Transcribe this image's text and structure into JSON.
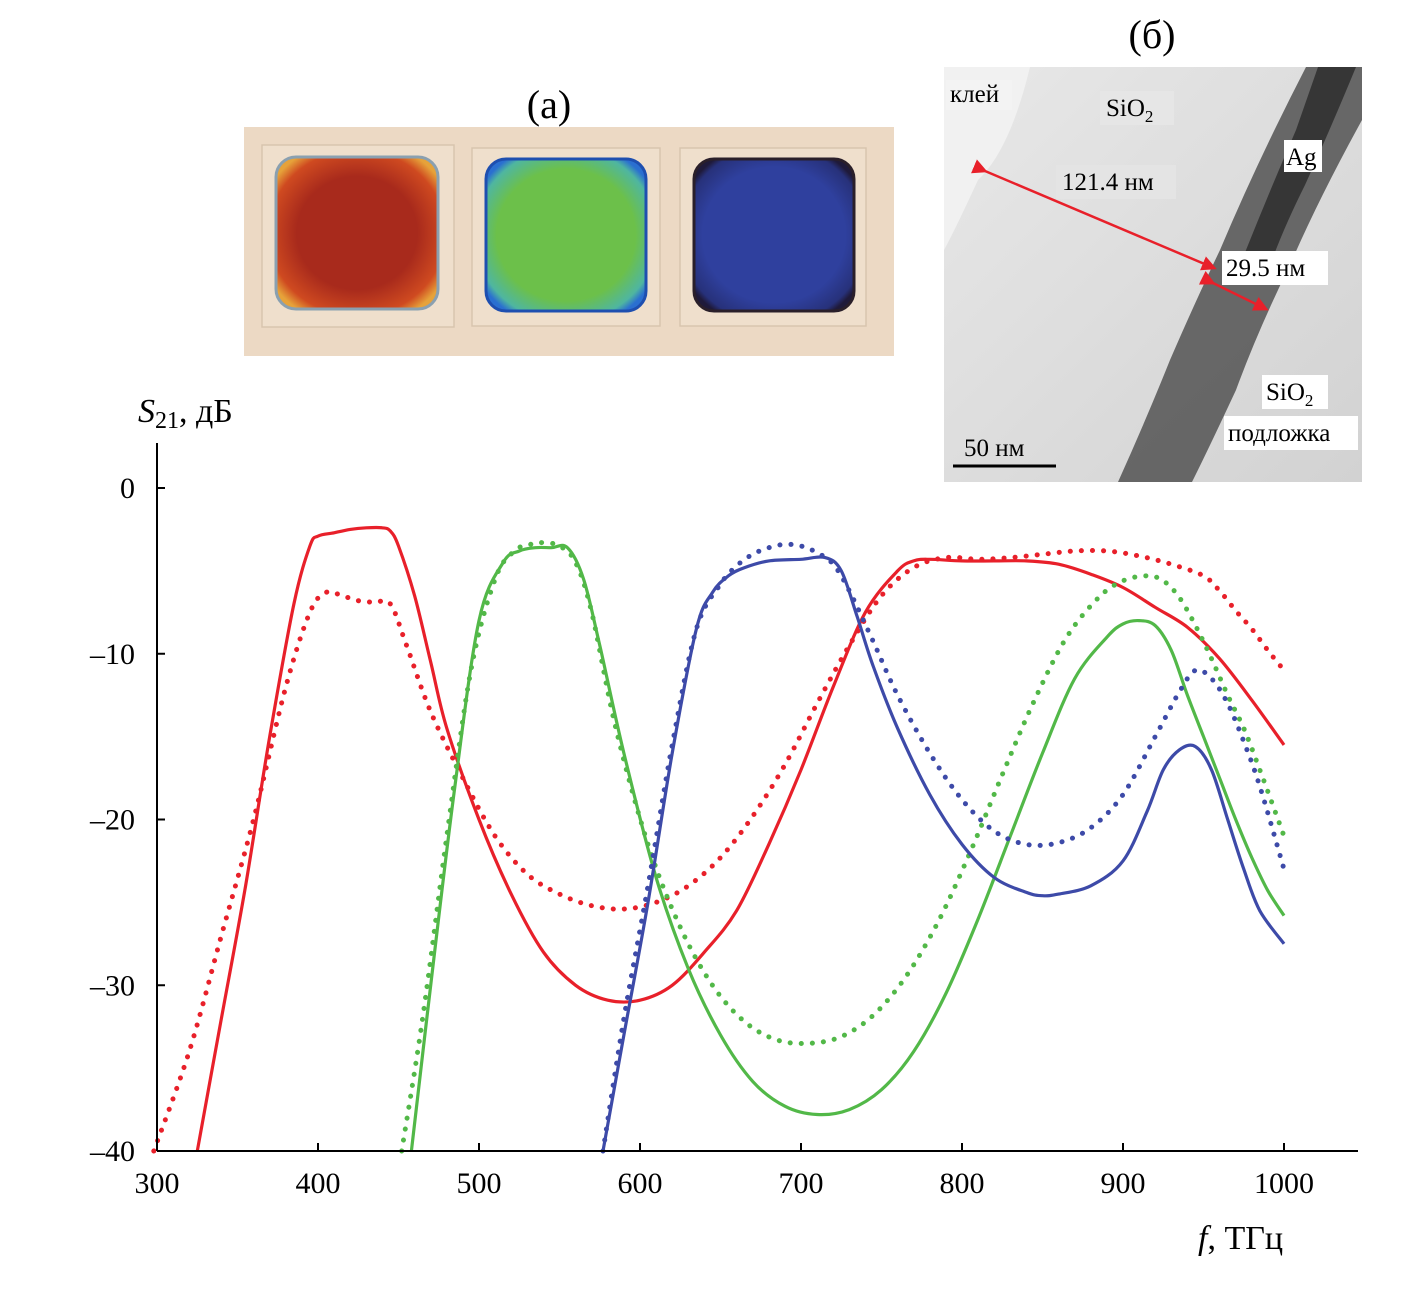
{
  "panel_a": {
    "label": "(а)",
    "samples": [
      {
        "name": "red-filter",
        "color": "#b02a1e",
        "edge_color": "#d96a20"
      },
      {
        "name": "green-filter",
        "color": "#6cc04a",
        "edge_color": "#2f79c9"
      },
      {
        "name": "blue-filter",
        "color": "#2f3f9c",
        "edge_color": "#1e2d7a"
      }
    ]
  },
  "panel_b": {
    "label": "(б)",
    "labels": {
      "glue": "клей",
      "sio2_top": "SiO",
      "sio2_top_sub": "2",
      "ag": "Ag",
      "dist1": "121.4 нм",
      "dist2": "29.5 нм",
      "sio2_bottom": "SiO",
      "sio2_bottom_sub": "2",
      "substrate": "подложка",
      "scale": "50 нм"
    },
    "arrow_color": "#e8202a"
  },
  "chart_data": {
    "type": "line",
    "ylabel_main": "S",
    "ylabel_sub": "21",
    "ylabel_unit": ", дБ",
    "xlabel_main": "f",
    "xlabel_unit": ", ТГц",
    "xlim": [
      300,
      1050
    ],
    "ylim": [
      -40,
      3
    ],
    "xticks": [
      300,
      400,
      500,
      600,
      700,
      800,
      900,
      1000
    ],
    "yticks": [
      0,
      -10,
      -20,
      -30,
      -40
    ],
    "ytick_labels": [
      "0",
      "–10",
      "–20",
      "–30",
      "–40"
    ],
    "series": [
      {
        "name": "red-solid",
        "color": "#e8202a",
        "style": "solid",
        "x": [
          325,
          340,
          355,
          370,
          385,
          395,
          400,
          410,
          420,
          430,
          440,
          445,
          450,
          460,
          470,
          480,
          500,
          520,
          540,
          560,
          580,
          600,
          620,
          640,
          660,
          680,
          700,
          720,
          740,
          760,
          770,
          780,
          800,
          820,
          840,
          860,
          880,
          900,
          920,
          940,
          960,
          980,
          1000
        ],
        "y": [
          -40,
          -32,
          -24,
          -15,
          -7,
          -3.5,
          -2.9,
          -2.7,
          -2.5,
          -2.4,
          -2.4,
          -2.6,
          -3.5,
          -6.5,
          -10.5,
          -14.5,
          -20,
          -24.5,
          -28,
          -30,
          -30.9,
          -30.9,
          -30,
          -28,
          -25.5,
          -21.5,
          -17,
          -12,
          -7.5,
          -5,
          -4.4,
          -4.3,
          -4.4,
          -4.4,
          -4.4,
          -4.6,
          -5.2,
          -6,
          -7.2,
          -8.4,
          -10.3,
          -12.8,
          -15.5
        ]
      },
      {
        "name": "red-dotted",
        "color": "#e8202a",
        "style": "dotted",
        "x": [
          298,
          320,
          340,
          360,
          380,
          395,
          405,
          415,
          425,
          435,
          445,
          455,
          470,
          490,
          510,
          530,
          550,
          570,
          590,
          610,
          630,
          650,
          670,
          690,
          710,
          730,
          750,
          770,
          790,
          810,
          830,
          850,
          870,
          890,
          910,
          930,
          950,
          960,
          970,
          980,
          990,
          1000
        ],
        "y": [
          -40,
          -34,
          -27,
          -20,
          -12,
          -7.5,
          -6.3,
          -6.5,
          -6.8,
          -6.9,
          -7,
          -9.5,
          -13.5,
          -17.5,
          -21,
          -23.3,
          -24.5,
          -25.2,
          -25.4,
          -25,
          -24,
          -22.3,
          -19.8,
          -16.7,
          -13,
          -9.5,
          -6.5,
          -4.8,
          -4.2,
          -4.3,
          -4.2,
          -4,
          -3.8,
          -3.8,
          -4.1,
          -4.6,
          -5.3,
          -6.2,
          -7.4,
          -8.5,
          -9.8,
          -11
        ]
      },
      {
        "name": "green-solid",
        "color": "#52b848",
        "style": "solid",
        "x": [
          458,
          470,
          485,
          500,
          515,
          525,
          535,
          545,
          555,
          565,
          575,
          590,
          610,
          630,
          650,
          670,
          690,
          710,
          730,
          750,
          770,
          790,
          810,
          830,
          850,
          870,
          890,
          900,
          910,
          920,
          930,
          940,
          950,
          960,
          970,
          980,
          990,
          1000
        ],
        "y": [
          -40,
          -30,
          -18,
          -8,
          -4.5,
          -3.8,
          -3.6,
          -3.6,
          -3.6,
          -5.5,
          -9.5,
          -16,
          -23.5,
          -29,
          -33,
          -35.8,
          -37.3,
          -37.8,
          -37.5,
          -36.3,
          -34,
          -30.5,
          -26,
          -21,
          -16,
          -11.5,
          -9,
          -8.2,
          -8,
          -8.3,
          -9.8,
          -12.5,
          -15,
          -17.5,
          -20,
          -22.3,
          -24.3,
          -25.8
        ]
      },
      {
        "name": "green-dotted",
        "color": "#52b848",
        "style": "dotted",
        "x": [
          452,
          465,
          480,
          495,
          510,
          522,
          532,
          540,
          550,
          560,
          570,
          585,
          605,
          625,
          645,
          665,
          685,
          705,
          725,
          745,
          765,
          785,
          805,
          825,
          845,
          865,
          885,
          900,
          915,
          925,
          935,
          945,
          955,
          965,
          975,
          985,
          1000
        ],
        "y": [
          -40,
          -32,
          -21,
          -11,
          -5.5,
          -3.8,
          -3.4,
          -3.3,
          -3.5,
          -4.5,
          -7.5,
          -14.5,
          -21.5,
          -26.5,
          -30,
          -32.2,
          -33.3,
          -33.5,
          -33.1,
          -31.8,
          -29.5,
          -26.2,
          -22,
          -17.3,
          -12.8,
          -9,
          -6.6,
          -5.6,
          -5.3,
          -5.6,
          -6.6,
          -8.3,
          -10.3,
          -12.5,
          -14.5,
          -17,
          -21
        ]
      },
      {
        "name": "blue-solid",
        "color": "#3d4aa8",
        "style": "solid",
        "x": [
          577,
          590,
          605,
          620,
          635,
          645,
          655,
          665,
          680,
          700,
          715,
          725,
          735,
          745,
          760,
          780,
          800,
          820,
          840,
          850,
          860,
          880,
          900,
          915,
          925,
          935,
          945,
          955,
          965,
          975,
          985,
          1000
        ],
        "y": [
          -40,
          -33,
          -25,
          -16,
          -8.5,
          -6.3,
          -5.3,
          -4.8,
          -4.4,
          -4.3,
          -4.2,
          -5,
          -7.8,
          -10.8,
          -14.5,
          -18.5,
          -21.5,
          -23.5,
          -24.4,
          -24.6,
          -24.5,
          -24,
          -22.5,
          -19.5,
          -17,
          -15.8,
          -15.6,
          -17,
          -20,
          -23,
          -25.5,
          -27.5
        ]
      },
      {
        "name": "blue-dotted",
        "color": "#3d4aa8",
        "style": "dotted",
        "x": [
          577,
          590,
          605,
          620,
          635,
          650,
          660,
          670,
          680,
          690,
          700,
          710,
          720,
          730,
          745,
          760,
          780,
          800,
          820,
          840,
          860,
          880,
          900,
          920,
          935,
          945,
          955,
          965,
          975,
          985,
          1000
        ],
        "y": [
          -40,
          -32,
          -24,
          -15.5,
          -8.5,
          -5.8,
          -4.7,
          -4,
          -3.6,
          -3.4,
          -3.5,
          -3.9,
          -4.6,
          -6.2,
          -9.3,
          -12.5,
          -16,
          -18.8,
          -20.7,
          -21.5,
          -21.4,
          -20.5,
          -18.5,
          -15,
          -12.3,
          -11,
          -11.5,
          -13,
          -15.3,
          -18,
          -23
        ]
      }
    ]
  }
}
